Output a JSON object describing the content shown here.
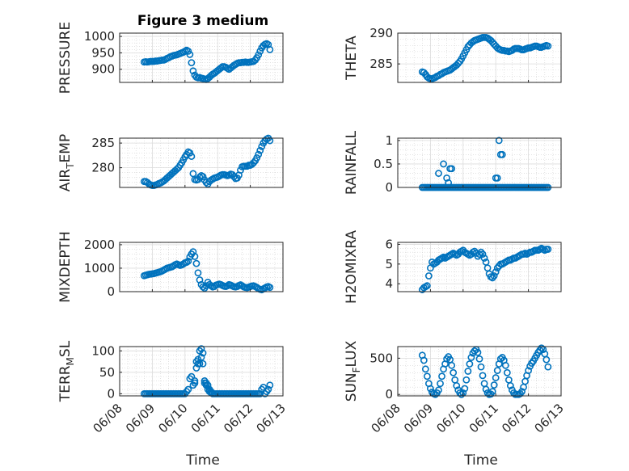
{
  "figure": {
    "title": "Figure 3 medium",
    "xlabel": "Time",
    "x_ticks": [
      "06/08",
      "06/09",
      "06/10",
      "06/11",
      "06/12",
      "06/13"
    ],
    "marker_color": "#0072BD",
    "axes_color": "#262626",
    "grid_color": "#d0d0d0"
  },
  "chart_data": [
    {
      "type": "scatter",
      "name": "pressure",
      "ylabel": "PRESSURE",
      "ylim": [
        860,
        1010
      ],
      "y_ticks": [
        900,
        950,
        1000
      ],
      "xlim": [
        0,
        5
      ],
      "x": [
        0.75,
        0.8,
        0.85,
        0.9,
        0.95,
        1.0,
        1.05,
        1.1,
        1.15,
        1.2,
        1.25,
        1.3,
        1.35,
        1.4,
        1.45,
        1.5,
        1.55,
        1.6,
        1.65,
        1.7,
        1.75,
        1.8,
        1.85,
        1.9,
        1.95,
        2.0,
        2.05,
        2.1,
        2.15,
        2.2,
        2.25,
        2.3,
        2.35,
        2.4,
        2.45,
        2.5,
        2.55,
        2.6,
        2.65,
        2.7,
        2.75,
        2.8,
        2.85,
        2.9,
        2.95,
        3.0,
        3.05,
        3.1,
        3.15,
        3.2,
        3.25,
        3.3,
        3.35,
        3.4,
        3.45,
        3.5,
        3.55,
        3.6,
        3.65,
        3.7,
        3.75,
        3.8,
        3.85,
        3.9,
        3.95,
        4.0,
        4.05,
        4.1,
        4.15,
        4.2,
        4.25,
        4.3,
        4.35,
        4.4,
        4.45,
        4.5,
        4.55,
        4.6
      ],
      "values": [
        922,
        923,
        922,
        923,
        924,
        924,
        924,
        925,
        925,
        926,
        927,
        928,
        928,
        930,
        933,
        935,
        938,
        940,
        942,
        943,
        944,
        946,
        948,
        950,
        952,
        955,
        958,
        955,
        945,
        920,
        895,
        882,
        876,
        874,
        875,
        873,
        872,
        870,
        869,
        872,
        876,
        881,
        885,
        888,
        892,
        896,
        900,
        904,
        908,
        908,
        906,
        903,
        900,
        904,
        908,
        912,
        915,
        918,
        920,
        920,
        921,
        921,
        922,
        921,
        921,
        922,
        923,
        924,
        928,
        935,
        944,
        955,
        965,
        972,
        976,
        978,
        975,
        960
      ]
    },
    {
      "type": "scatter",
      "name": "theta",
      "ylabel": "THETA",
      "ylim": [
        282,
        290
      ],
      "y_ticks": [
        285,
        290
      ],
      "xlim": [
        0,
        5
      ],
      "x": [
        0.75,
        0.8,
        0.85,
        0.9,
        0.95,
        1.0,
        1.05,
        1.1,
        1.15,
        1.2,
        1.25,
        1.3,
        1.35,
        1.4,
        1.45,
        1.5,
        1.55,
        1.6,
        1.65,
        1.7,
        1.75,
        1.8,
        1.85,
        1.9,
        1.95,
        2.0,
        2.05,
        2.1,
        2.15,
        2.2,
        2.25,
        2.3,
        2.35,
        2.4,
        2.45,
        2.5,
        2.55,
        2.6,
        2.65,
        2.7,
        2.75,
        2.8,
        2.85,
        2.9,
        2.95,
        3.0,
        3.05,
        3.1,
        3.15,
        3.2,
        3.25,
        3.3,
        3.35,
        3.4,
        3.45,
        3.5,
        3.55,
        3.6,
        3.65,
        3.7,
        3.75,
        3.8,
        3.85,
        3.9,
        3.95,
        4.0,
        4.05,
        4.1,
        4.15,
        4.2,
        4.25,
        4.3,
        4.35,
        4.4,
        4.45,
        4.5,
        4.55,
        4.6
      ],
      "values": [
        283.7,
        283.6,
        283.3,
        282.9,
        282.7,
        282.6,
        282.6,
        282.7,
        282.8,
        283.0,
        283.1,
        283.3,
        283.4,
        283.6,
        283.7,
        283.8,
        283.9,
        284.0,
        284.2,
        284.4,
        284.6,
        284.8,
        285.1,
        285.4,
        285.8,
        286.3,
        286.8,
        287.3,
        287.8,
        288.1,
        288.4,
        288.6,
        288.8,
        288.9,
        289.0,
        289.1,
        289.2,
        289.3,
        289.3,
        289.3,
        289.2,
        289.0,
        288.8,
        288.5,
        288.2,
        287.9,
        287.6,
        287.4,
        287.3,
        287.2,
        287.2,
        287.1,
        287.1,
        287.0,
        287.1,
        287.2,
        287.4,
        287.5,
        287.5,
        287.5,
        287.4,
        287.3,
        287.3,
        287.4,
        287.5,
        287.6,
        287.6,
        287.7,
        287.8,
        287.9,
        287.9,
        287.8,
        287.7,
        287.7,
        287.8,
        287.9,
        288.0,
        287.9
      ]
    },
    {
      "type": "scatter",
      "name": "air_temp",
      "ylabel": "AIR_TEMP",
      "ylim": [
        276,
        286
      ],
      "y_ticks": [
        280,
        285
      ],
      "xlim": [
        0,
        5
      ],
      "x": [
        0.75,
        0.8,
        0.85,
        0.9,
        0.95,
        1.0,
        1.05,
        1.1,
        1.15,
        1.2,
        1.25,
        1.3,
        1.35,
        1.4,
        1.45,
        1.5,
        1.55,
        1.6,
        1.65,
        1.7,
        1.75,
        1.8,
        1.85,
        1.9,
        1.95,
        2.0,
        2.05,
        2.1,
        2.15,
        2.2,
        2.25,
        2.3,
        2.35,
        2.4,
        2.45,
        2.5,
        2.55,
        2.6,
        2.65,
        2.7,
        2.75,
        2.8,
        2.85,
        2.9,
        2.95,
        3.0,
        3.05,
        3.1,
        3.15,
        3.2,
        3.25,
        3.3,
        3.35,
        3.4,
        3.45,
        3.5,
        3.55,
        3.6,
        3.65,
        3.7,
        3.75,
        3.8,
        3.85,
        3.9,
        3.95,
        4.0,
        4.05,
        4.1,
        4.15,
        4.2,
        4.25,
        4.3,
        4.35,
        4.4,
        4.45,
        4.5,
        4.55,
        4.6
      ],
      "values": [
        277.2,
        277.2,
        277.0,
        276.7,
        276.5,
        276.4,
        276.4,
        276.5,
        276.6,
        276.8,
        276.9,
        277.1,
        277.3,
        277.6,
        277.9,
        278.2,
        278.5,
        278.8,
        279.1,
        279.4,
        279.7,
        280.0,
        280.5,
        281.0,
        281.6,
        282.2,
        282.7,
        283.2,
        283.0,
        282.3,
        278.8,
        277.6,
        277.5,
        277.6,
        278.1,
        278.4,
        278.2,
        277.5,
        277.0,
        276.7,
        277.2,
        277.5,
        277.7,
        277.9,
        278.0,
        278.1,
        278.3,
        278.5,
        278.6,
        278.6,
        278.5,
        278.4,
        278.5,
        278.7,
        278.6,
        278.2,
        277.8,
        277.9,
        278.5,
        279.5,
        280.2,
        280.3,
        280.3,
        280.3,
        280.5,
        280.5,
        280.7,
        281.0,
        281.4,
        282.0,
        282.7,
        283.5,
        284.3,
        285.0,
        285.5,
        285.8,
        286.0,
        285.5
      ]
    },
    {
      "type": "scatter",
      "name": "rainfall",
      "ylabel": "RAINFALL",
      "ylim": [
        0,
        1.05
      ],
      "y_ticks": [
        0,
        0.5,
        1
      ],
      "xlim": [
        0,
        5
      ],
      "x": [
        0.75,
        0.8,
        0.85,
        0.9,
        0.95,
        1.0,
        1.05,
        1.1,
        1.15,
        1.2,
        1.25,
        1.3,
        1.35,
        1.4,
        1.45,
        1.5,
        1.55,
        1.6,
        1.65,
        1.7,
        1.75,
        1.8,
        1.85,
        1.9,
        1.95,
        2.0,
        2.05,
        2.1,
        2.15,
        2.2,
        2.25,
        2.3,
        2.35,
        2.4,
        2.45,
        2.5,
        2.55,
        2.6,
        2.65,
        2.7,
        2.75,
        2.8,
        2.85,
        2.9,
        2.95,
        3.0,
        3.05,
        3.1,
        3.15,
        3.2,
        3.25,
        3.3,
        3.35,
        3.4,
        3.45,
        3.5,
        3.55,
        3.6,
        3.65,
        3.7,
        3.75,
        3.8,
        3.85,
        3.9,
        3.95,
        4.0,
        4.05,
        4.1,
        4.15,
        4.2,
        4.25,
        4.3,
        4.35,
        4.4,
        4.45,
        4.5,
        4.55,
        4.6,
        1.25,
        1.4,
        1.5,
        1.55,
        1.6,
        1.65,
        3.0,
        3.05,
        3.1,
        3.15,
        3.2
      ],
      "values": [
        0,
        0,
        0,
        0,
        0,
        0,
        0,
        0,
        0,
        0,
        0,
        0,
        0,
        0,
        0,
        0,
        0,
        0,
        0,
        0,
        0,
        0,
        0,
        0,
        0,
        0,
        0,
        0,
        0,
        0,
        0,
        0,
        0,
        0,
        0,
        0,
        0,
        0,
        0,
        0,
        0,
        0,
        0,
        0,
        0,
        0,
        0,
        0,
        0,
        0,
        0,
        0,
        0,
        0,
        0,
        0,
        0,
        0,
        0,
        0,
        0,
        0,
        0,
        0,
        0,
        0,
        0,
        0,
        0,
        0,
        0,
        0,
        0,
        0,
        0,
        0,
        0,
        0,
        0.3,
        0.5,
        0.2,
        0.1,
        0.4,
        0.4,
        0.2,
        0.2,
        1.0,
        0.7,
        0.7
      ]
    },
    {
      "type": "scatter",
      "name": "mixdepth",
      "ylabel": "MIXDEPTH",
      "ylim": [
        0,
        2100
      ],
      "y_ticks": [
        0,
        1000,
        2000
      ],
      "xlim": [
        0,
        5
      ],
      "x": [
        0.75,
        0.8,
        0.85,
        0.9,
        0.95,
        1.0,
        1.05,
        1.1,
        1.15,
        1.2,
        1.25,
        1.3,
        1.35,
        1.4,
        1.45,
        1.5,
        1.55,
        1.6,
        1.65,
        1.7,
        1.75,
        1.8,
        1.85,
        1.9,
        1.95,
        2.0,
        2.05,
        2.1,
        2.15,
        2.2,
        2.25,
        2.3,
        2.35,
        2.4,
        2.45,
        2.5,
        2.55,
        2.6,
        2.65,
        2.7,
        2.75,
        2.8,
        2.85,
        2.9,
        2.95,
        3.0,
        3.05,
        3.1,
        3.15,
        3.2,
        3.25,
        3.3,
        3.35,
        3.4,
        3.45,
        3.5,
        3.55,
        3.6,
        3.65,
        3.7,
        3.75,
        3.8,
        3.85,
        3.9,
        3.95,
        4.0,
        4.05,
        4.1,
        4.15,
        4.2,
        4.25,
        4.3,
        4.35,
        4.4,
        4.45,
        4.5,
        4.55,
        4.6
      ],
      "values": [
        680,
        700,
        720,
        740,
        750,
        760,
        770,
        790,
        810,
        830,
        850,
        880,
        920,
        960,
        1000,
        1020,
        1040,
        1060,
        1100,
        1150,
        1180,
        1150,
        1120,
        1140,
        1180,
        1230,
        1250,
        1300,
        1480,
        1600,
        1700,
        1500,
        1200,
        800,
        500,
        300,
        200,
        150,
        250,
        400,
        300,
        250,
        200,
        220,
        280,
        300,
        320,
        300,
        260,
        230,
        220,
        250,
        300,
        280,
        240,
        210,
        200,
        220,
        260,
        290,
        250,
        200,
        180,
        170,
        190,
        220,
        240,
        250,
        220,
        180,
        130,
        100,
        80,
        120,
        160,
        200,
        220,
        180
      ]
    },
    {
      "type": "scatter",
      "name": "h2omixra",
      "ylabel": "H2OMIXRA",
      "ylim": [
        3.6,
        6.1
      ],
      "y_ticks": [
        4,
        5,
        6
      ],
      "xlim": [
        0,
        5
      ],
      "x": [
        0.75,
        0.8,
        0.85,
        0.9,
        0.95,
        1.0,
        1.05,
        1.1,
        1.15,
        1.2,
        1.25,
        1.3,
        1.35,
        1.4,
        1.45,
        1.5,
        1.55,
        1.6,
        1.65,
        1.7,
        1.75,
        1.8,
        1.85,
        1.9,
        1.95,
        2.0,
        2.05,
        2.1,
        2.15,
        2.2,
        2.25,
        2.3,
        2.35,
        2.4,
        2.45,
        2.5,
        2.55,
        2.6,
        2.65,
        2.7,
        2.75,
        2.8,
        2.85,
        2.9,
        2.95,
        3.0,
        3.05,
        3.1,
        3.15,
        3.2,
        3.25,
        3.3,
        3.35,
        3.4,
        3.45,
        3.5,
        3.55,
        3.6,
        3.65,
        3.7,
        3.75,
        3.8,
        3.85,
        3.9,
        3.95,
        4.0,
        4.05,
        4.1,
        4.15,
        4.2,
        4.25,
        4.3,
        4.35,
        4.4,
        4.45,
        4.5,
        4.55,
        4.6
      ],
      "values": [
        3.7,
        3.8,
        3.85,
        3.9,
        4.4,
        4.8,
        5.1,
        5.0,
        5.05,
        5.1,
        5.2,
        5.25,
        5.3,
        5.35,
        5.3,
        5.35,
        5.4,
        5.45,
        5.5,
        5.55,
        5.5,
        5.45,
        5.5,
        5.6,
        5.65,
        5.7,
        5.6,
        5.55,
        5.5,
        5.45,
        5.5,
        5.6,
        5.65,
        5.55,
        5.4,
        5.5,
        5.6,
        5.5,
        5.3,
        5.1,
        4.8,
        4.5,
        4.35,
        4.3,
        4.4,
        4.6,
        4.8,
        4.9,
        5.0,
        5.0,
        5.05,
        5.1,
        5.15,
        5.2,
        5.2,
        5.25,
        5.3,
        5.3,
        5.35,
        5.4,
        5.45,
        5.5,
        5.5,
        5.55,
        5.5,
        5.55,
        5.6,
        5.6,
        5.65,
        5.7,
        5.7,
        5.7,
        5.75,
        5.8,
        5.75,
        5.7,
        5.75,
        5.75
      ]
    },
    {
      "type": "scatter",
      "name": "terr_msl",
      "ylabel": "TERR_MSL",
      "ylim": [
        -5,
        110
      ],
      "y_ticks": [
        0,
        50,
        100
      ],
      "xlim": [
        0,
        5
      ],
      "x": [
        0.75,
        0.8,
        0.85,
        0.9,
        0.95,
        1.0,
        1.05,
        1.1,
        1.15,
        1.2,
        1.25,
        1.3,
        1.35,
        1.4,
        1.45,
        1.5,
        1.55,
        1.6,
        1.65,
        1.7,
        1.75,
        1.8,
        1.85,
        1.9,
        1.95,
        2.0,
        2.05,
        2.1,
        2.15,
        2.2,
        2.25,
        2.3,
        2.35,
        2.4,
        2.45,
        2.5,
        2.55,
        2.6,
        2.65,
        2.7,
        2.75,
        2.8,
        2.85,
        2.9,
        2.95,
        3.0,
        3.05,
        3.1,
        3.15,
        3.2,
        3.25,
        3.3,
        3.35,
        3.4,
        3.45,
        3.5,
        3.55,
        3.6,
        3.65,
        3.7,
        3.75,
        3.8,
        3.85,
        3.9,
        3.95,
        4.0,
        4.05,
        4.1,
        4.15,
        4.2,
        4.25,
        4.3,
        4.35,
        4.4,
        4.45,
        4.5,
        4.55,
        4.6,
        2.3,
        2.35,
        2.4,
        2.45,
        2.5,
        2.55,
        2.6,
        2.65,
        2.7,
        2.75,
        2.8
      ],
      "values": [
        0,
        0,
        0,
        0,
        0,
        0,
        0,
        0,
        0,
        0,
        0,
        0,
        0,
        0,
        0,
        0,
        0,
        0,
        0,
        0,
        0,
        0,
        0,
        0,
        0,
        0,
        5,
        10,
        35,
        40,
        20,
        30,
        60,
        70,
        100,
        105,
        95,
        30,
        25,
        20,
        10,
        5,
        0,
        0,
        0,
        0,
        0,
        0,
        0,
        0,
        0,
        0,
        0,
        0,
        0,
        0,
        0,
        0,
        0,
        0,
        0,
        0,
        0,
        0,
        0,
        0,
        0,
        0,
        0,
        0,
        0,
        0,
        10,
        15,
        0,
        5,
        10,
        20,
        25,
        75,
        80,
        70,
        85,
        70,
        25,
        20,
        10,
        5,
        2
      ]
    },
    {
      "type": "scatter",
      "name": "sun_flux",
      "ylabel": "SUN_FLUX",
      "ylim": [
        -20,
        660
      ],
      "y_ticks": [
        0,
        500
      ],
      "xlim": [
        0,
        5
      ],
      "x": [
        0.75,
        0.8,
        0.85,
        0.9,
        0.95,
        1.0,
        1.05,
        1.1,
        1.15,
        1.2,
        1.25,
        1.3,
        1.35,
        1.4,
        1.45,
        1.5,
        1.55,
        1.6,
        1.65,
        1.7,
        1.75,
        1.8,
        1.85,
        1.9,
        1.95,
        2.0,
        2.05,
        2.1,
        2.15,
        2.2,
        2.25,
        2.3,
        2.35,
        2.4,
        2.45,
        2.5,
        2.55,
        2.6,
        2.65,
        2.7,
        2.75,
        2.8,
        2.85,
        2.9,
        2.95,
        3.0,
        3.05,
        3.1,
        3.15,
        3.2,
        3.25,
        3.3,
        3.35,
        3.4,
        3.45,
        3.5,
        3.55,
        3.6,
        3.65,
        3.7,
        3.75,
        3.8,
        3.85,
        3.9,
        3.95,
        4.0,
        4.05,
        4.1,
        4.15,
        4.2,
        4.25,
        4.3,
        4.35,
        4.4,
        4.45,
        4.5,
        4.55,
        4.6
      ],
      "values": [
        540,
        470,
        350,
        250,
        150,
        80,
        30,
        10,
        0,
        20,
        60,
        150,
        250,
        350,
        420,
        490,
        520,
        480,
        400,
        300,
        200,
        120,
        60,
        20,
        0,
        20,
        80,
        200,
        320,
        420,
        510,
        570,
        600,
        620,
        580,
        490,
        380,
        260,
        150,
        70,
        20,
        0,
        5,
        40,
        130,
        230,
        330,
        420,
        490,
        510,
        470,
        400,
        300,
        200,
        120,
        60,
        20,
        0,
        0,
        0,
        10,
        40,
        100,
        180,
        260,
        330,
        390,
        430,
        460,
        500,
        540,
        580,
        610,
        640,
        620,
        560,
        480,
        380
      ]
    }
  ]
}
